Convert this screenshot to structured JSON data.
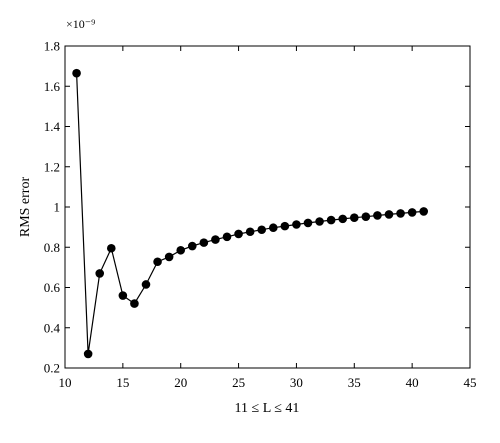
{
  "chart_data": {
    "type": "line",
    "title": "",
    "xlabel": "11 ≤ L ≤ 41",
    "ylabel": "RMS error",
    "y_exponent": "×10⁻⁹",
    "xlim": [
      10,
      45
    ],
    "ylim": [
      0.2,
      1.8
    ],
    "x_ticks": [
      10,
      15,
      20,
      25,
      30,
      35,
      40,
      45
    ],
    "x_tick_labels": [
      "10",
      "15",
      "20",
      "25",
      "30",
      "35",
      "40",
      "45"
    ],
    "y_ticks": [
      0.2,
      0.4,
      0.6,
      0.8,
      1.0,
      1.2,
      1.4,
      1.6,
      1.8
    ],
    "y_tick_labels": [
      "0.2",
      "0.4",
      "0.6",
      "0.8",
      "1",
      "1.2",
      "1.4",
      "1.6",
      "1.8"
    ],
    "grid": false,
    "legend": "none",
    "series": [
      {
        "color": "#000000",
        "marker": "filled-circle",
        "x": [
          11,
          12,
          13,
          14,
          15,
          16,
          17,
          18,
          19,
          20,
          21,
          22,
          23,
          24,
          25,
          26,
          27,
          28,
          29,
          30,
          31,
          32,
          33,
          34,
          35,
          36,
          37,
          38,
          39,
          40,
          41
        ],
        "y": [
          1.665,
          0.27,
          0.67,
          0.795,
          0.56,
          0.52,
          0.615,
          0.728,
          0.752,
          0.785,
          0.806,
          0.823,
          0.838,
          0.852,
          0.866,
          0.877,
          0.887,
          0.897,
          0.905,
          0.913,
          0.921,
          0.928,
          0.935,
          0.941,
          0.947,
          0.952,
          0.958,
          0.963,
          0.968,
          0.973,
          0.978
        ]
      }
    ]
  }
}
